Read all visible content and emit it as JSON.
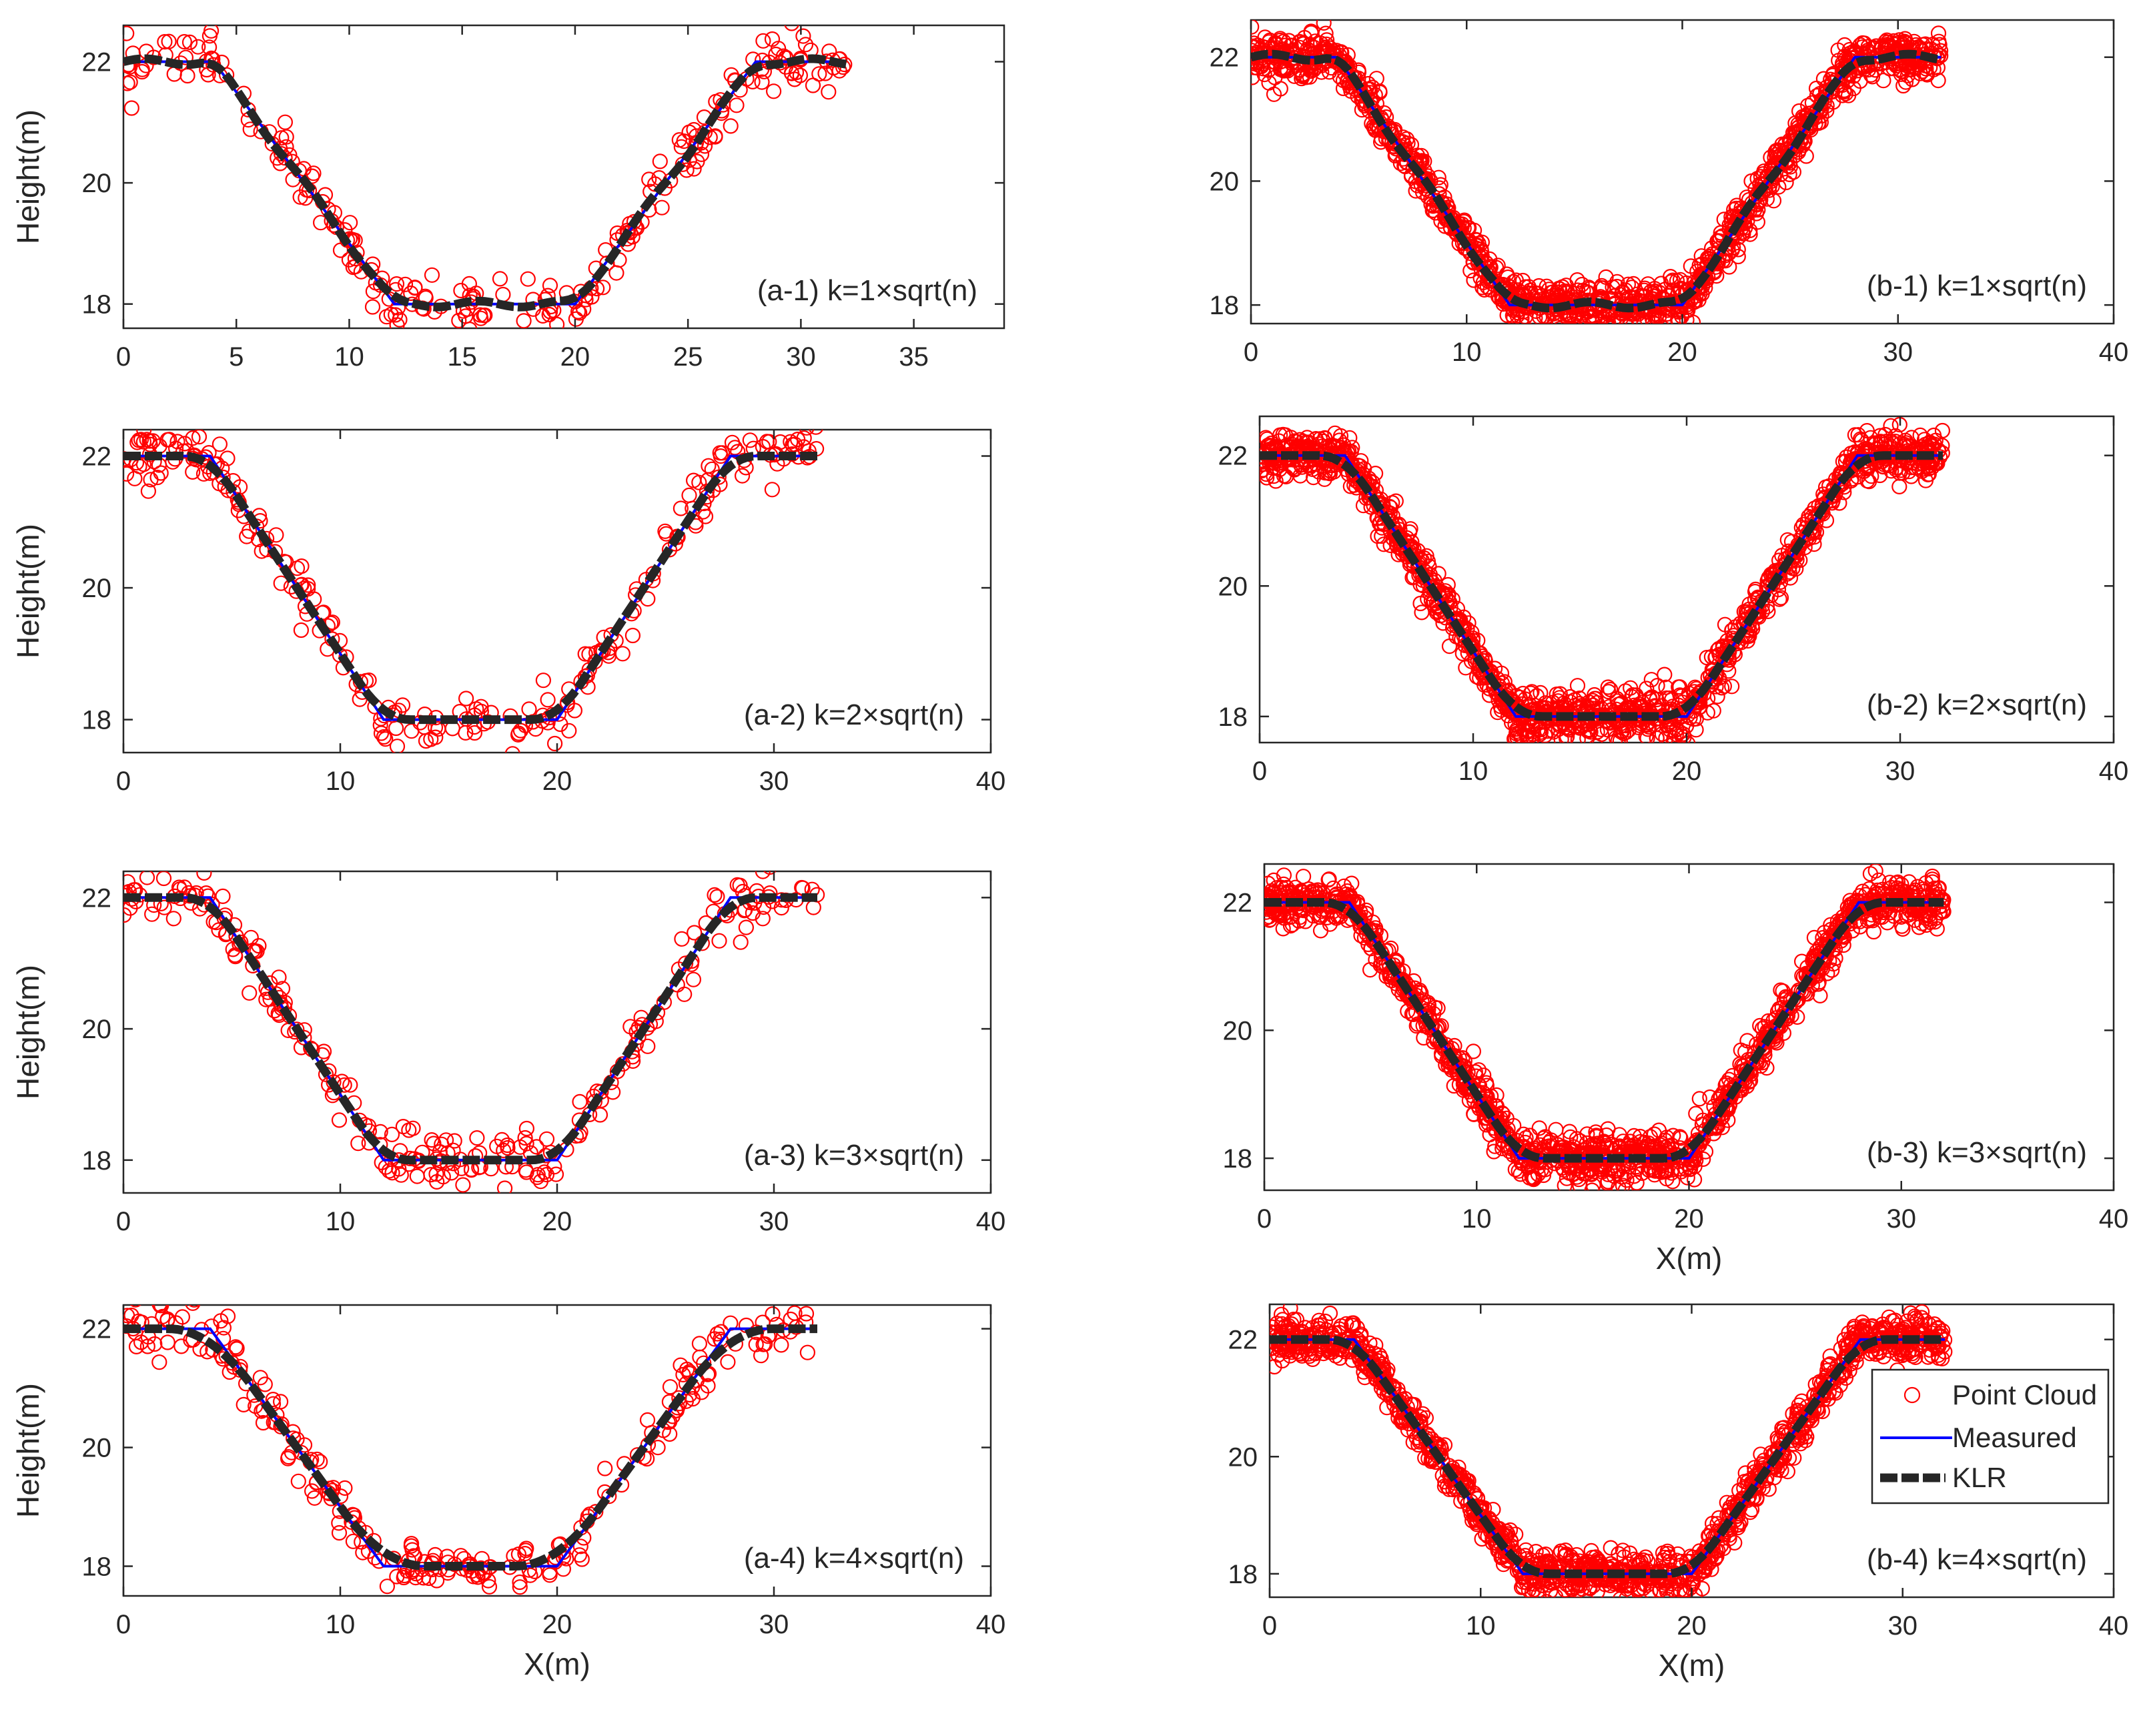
{
  "chart_data": [
    {
      "id": "a-1",
      "type": "scatter+line",
      "title": "(a-1) k=1×sqrt(n)",
      "xlabel": "",
      "ylabel": "Height(m)",
      "xlim": [
        0,
        39
      ],
      "ylim": [
        17.6,
        22.6
      ],
      "xticks": [
        "0",
        "5",
        "10",
        "15",
        "20",
        "25",
        "30",
        "35"
      ],
      "yticks": [
        "18",
        "20",
        "22"
      ],
      "n_points": 260,
      "noise": 0.22,
      "klr_shape": "tracking"
    },
    {
      "id": "b-1",
      "type": "scatter+line",
      "title": "(b-1) k=1×sqrt(n)",
      "xlabel": "",
      "ylabel": "",
      "xlim": [
        0,
        40
      ],
      "ylim": [
        17.7,
        22.6
      ],
      "xticks": [
        "0",
        "10",
        "20",
        "30",
        "40"
      ],
      "yticks": [
        "18",
        "20",
        "22"
      ],
      "n_points": 1300,
      "noise": 0.18,
      "klr_shape": "tracking"
    },
    {
      "id": "a-2",
      "type": "scatter+line",
      "title": "(a-2) k=2×sqrt(n)",
      "xlabel": "",
      "ylabel": "Height(m)",
      "xlim": [
        0,
        40
      ],
      "ylim": [
        17.5,
        22.4
      ],
      "xticks": [
        "0",
        "10",
        "20",
        "30",
        "40"
      ],
      "yticks": [
        "18",
        "20",
        "22"
      ],
      "n_points": 260,
      "noise": 0.22,
      "klr_shape": "smooth"
    },
    {
      "id": "b-2",
      "type": "scatter+line",
      "title": "(b-2) k=2×sqrt(n)",
      "xlabel": "",
      "ylabel": "",
      "xlim": [
        0,
        40
      ],
      "ylim": [
        17.6,
        22.6
      ],
      "xticks": [
        "0",
        "10",
        "20",
        "30",
        "40"
      ],
      "yticks": [
        "18",
        "20",
        "22"
      ],
      "n_points": 1300,
      "noise": 0.18,
      "klr_shape": "smooth"
    },
    {
      "id": "a-3",
      "type": "scatter+line",
      "title": "(a-3) k=3×sqrt(n)",
      "xlabel": "",
      "ylabel": "Height(m)",
      "xlim": [
        0,
        40
      ],
      "ylim": [
        17.5,
        22.4
      ],
      "xticks": [
        "0",
        "10",
        "20",
        "30",
        "40"
      ],
      "yticks": [
        "18",
        "20",
        "22"
      ],
      "n_points": 260,
      "noise": 0.22,
      "klr_shape": "smooth"
    },
    {
      "id": "b-3",
      "type": "scatter+line",
      "title": "(b-3) k=3×sqrt(n)",
      "xlabel": "X(m)",
      "ylabel": "",
      "xlim": [
        0,
        40
      ],
      "ylim": [
        17.5,
        22.6
      ],
      "xticks": [
        "0",
        "10",
        "20",
        "30",
        "40"
      ],
      "yticks": [
        "18",
        "20",
        "22"
      ],
      "n_points": 1300,
      "noise": 0.18,
      "klr_shape": "smooth"
    },
    {
      "id": "a-4",
      "type": "scatter+line",
      "title": "(a-4) k=4×sqrt(n)",
      "xlabel": "X(m)",
      "ylabel": "Height(m)",
      "xlim": [
        0,
        40
      ],
      "ylim": [
        17.5,
        22.4
      ],
      "xticks": [
        "0",
        "10",
        "20",
        "30",
        "40"
      ],
      "yticks": [
        "18",
        "20",
        "22"
      ],
      "n_points": 260,
      "noise": 0.22,
      "klr_shape": "smoothest"
    },
    {
      "id": "b-4",
      "type": "scatter+line",
      "title": "(b-4) k=4×sqrt(n)",
      "xlabel": "X(m)",
      "ylabel": "",
      "xlim": [
        0,
        40
      ],
      "ylim": [
        17.6,
        22.6
      ],
      "xticks": [
        "0",
        "10",
        "20",
        "30",
        "40"
      ],
      "yticks": [
        "18",
        "20",
        "22"
      ],
      "n_points": 1300,
      "noise": 0.18,
      "klr_shape": "smooth",
      "legend": {
        "placement": "top-right",
        "entries": [
          "Point Cloud",
          "Measured",
          "KLR"
        ]
      }
    }
  ],
  "measured_profile": {
    "x": [
      0,
      4,
      12,
      20,
      28,
      32
    ],
    "y": [
      22,
      22,
      18,
      18,
      22,
      22
    ]
  },
  "series_names": {
    "points": "Point Cloud",
    "measured": "Measured",
    "klr": "KLR"
  },
  "colors": {
    "points": "#ff0000",
    "measured": "#0000ff",
    "klr": "#262626",
    "axes": "#262626"
  }
}
